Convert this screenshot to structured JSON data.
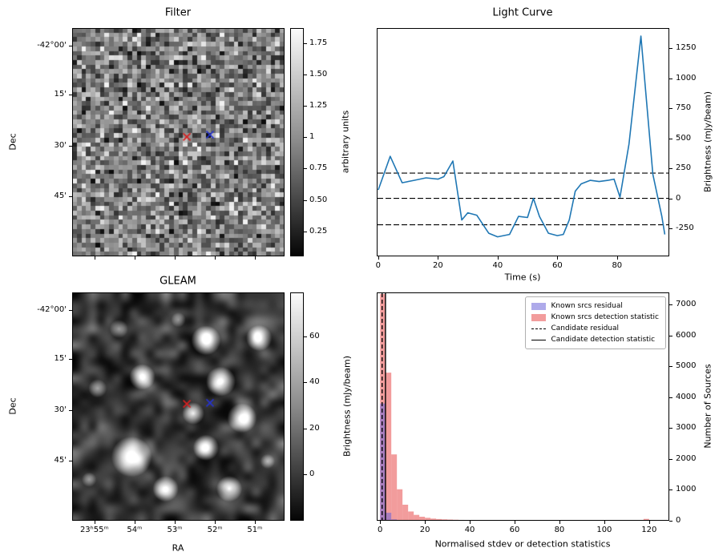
{
  "chart_data": [
    {
      "id": "filter",
      "type": "heatmap",
      "style": "pixel-noise",
      "title": "Filter",
      "xlabel": "",
      "ylabel": "Dec",
      "ytick_labels": [
        "-42°00'",
        "15'",
        "30'",
        "45'"
      ],
      "xtick_labels": [],
      "colorbar": {
        "label": "arbitrary units",
        "ticks": [
          1.75,
          1.5,
          1.25,
          1.0,
          0.75,
          0.5,
          0.25
        ],
        "vmin": 0.05,
        "vmax": 1.87
      },
      "markers": [
        {
          "shape": "x",
          "name": "candidate-marker",
          "color": "#d62020",
          "fx": 0.54,
          "fy": 0.477
        },
        {
          "shape": "x",
          "name": "reference-marker",
          "color": "#2633cc",
          "fx": 0.649,
          "fy": 0.467
        }
      ]
    },
    {
      "id": "light-curve",
      "type": "line",
      "title": "Light Curve",
      "xlabel": "Time (s)",
      "ylabel": "Brightness (mJy/beam)",
      "line_color": "#1f77b4",
      "x": [
        0,
        4,
        8,
        12,
        16,
        20,
        22,
        25,
        28,
        30,
        33,
        37,
        40,
        44,
        47,
        50,
        52,
        54,
        57,
        60,
        62,
        64,
        66,
        68,
        71,
        74,
        77,
        79,
        81,
        84,
        88,
        92,
        95,
        96
      ],
      "y": [
        70,
        350,
        130,
        150,
        170,
        160,
        180,
        310,
        -180,
        -120,
        -140,
        -290,
        -320,
        -300,
        -150,
        -160,
        0,
        -150,
        -290,
        -310,
        -300,
        -180,
        60,
        120,
        150,
        140,
        150,
        160,
        10,
        450,
        1350,
        200,
        -150,
        -300
      ],
      "dashed_hlines": [
        210,
        0,
        -220
      ],
      "xticks": [
        0,
        20,
        40,
        60,
        80
      ],
      "yticks": [
        -250,
        0,
        250,
        500,
        750,
        1000,
        1250
      ],
      "xlim": [
        -0.5,
        97.5
      ],
      "ylim": [
        -483,
        1417
      ]
    },
    {
      "id": "gleam",
      "type": "heatmap",
      "style": "smooth-blobs",
      "title": "GLEAM",
      "xlabel": "RA",
      "ylabel": "Dec",
      "ytick_labels": [
        "-42°00'",
        "15'",
        "30'",
        "45'"
      ],
      "xtick_labels": [
        "23ʰ55ᵐ",
        "54ᵐ",
        "53ᵐ",
        "52ᵐ",
        "51ᵐ"
      ],
      "colorbar": {
        "label": "Brightness (mJy/beam)",
        "ticks": [
          60,
          40,
          20,
          0
        ],
        "vmin": -20,
        "vmax": 79
      },
      "sources": [
        {
          "fx": 0.28,
          "fy": 0.72,
          "r": 11,
          "b": 1.0
        },
        {
          "fx": 0.63,
          "fy": 0.21,
          "r": 8,
          "b": 1.0
        },
        {
          "fx": 0.7,
          "fy": 0.39,
          "r": 8,
          "b": 1.0
        },
        {
          "fx": 0.33,
          "fy": 0.37,
          "r": 7,
          "b": 0.9
        },
        {
          "fx": 0.88,
          "fy": 0.2,
          "r": 7,
          "b": 0.9
        },
        {
          "fx": 0.57,
          "fy": 0.53,
          "r": 6,
          "b": 0.8
        },
        {
          "fx": 0.8,
          "fy": 0.55,
          "r": 8,
          "b": 0.95
        },
        {
          "fx": 0.63,
          "fy": 0.68,
          "r": 7,
          "b": 0.9
        },
        {
          "fx": 0.44,
          "fy": 0.86,
          "r": 7,
          "b": 0.9
        },
        {
          "fx": 0.74,
          "fy": 0.86,
          "r": 7,
          "b": 0.9
        },
        {
          "fx": 0.12,
          "fy": 0.42,
          "r": 5,
          "b": 0.5
        },
        {
          "fx": 0.22,
          "fy": 0.16,
          "r": 5,
          "b": 0.45
        },
        {
          "fx": 0.5,
          "fy": 0.12,
          "r": 4,
          "b": 0.4
        },
        {
          "fx": 0.08,
          "fy": 0.82,
          "r": 4,
          "b": 0.4
        },
        {
          "fx": 0.92,
          "fy": 0.74,
          "r": 4,
          "b": 0.4
        }
      ],
      "markers": [
        {
          "shape": "x",
          "name": "candidate-marker",
          "color": "#d62020",
          "fx": 0.54,
          "fy": 0.488
        },
        {
          "shape": "x",
          "name": "reference-marker",
          "color": "#2633cc",
          "fx": 0.649,
          "fy": 0.484
        }
      ]
    },
    {
      "id": "histogram",
      "type": "bar",
      "title": "",
      "xlabel": "Normalised stdev or detection statistics",
      "ylabel": "Number of Sources",
      "bin_width": 2.5,
      "bin_start": 0,
      "series": [
        {
          "name": "Known srcs residual",
          "color": "#6b64d8",
          "values": [
            3800,
            260,
            45,
            12,
            5,
            3,
            2,
            1,
            1,
            0,
            0,
            0,
            0,
            0,
            0,
            0,
            0,
            0,
            0,
            0,
            0,
            0,
            0,
            0,
            0,
            0,
            0,
            0,
            0,
            0,
            0,
            0,
            0,
            0,
            0,
            0,
            0,
            0,
            0,
            0,
            0,
            0,
            0,
            0,
            0,
            0,
            0,
            0,
            0,
            0,
            0,
            0
          ]
        },
        {
          "name": "Known srcs detection statistic",
          "color": "#e84a4a",
          "values": [
            7350,
            4800,
            2150,
            1020,
            520,
            300,
            190,
            130,
            95,
            70,
            55,
            45,
            38,
            32,
            27,
            23,
            20,
            17,
            15,
            13,
            12,
            11,
            10,
            9,
            8,
            8,
            7,
            7,
            6,
            6,
            5,
            5,
            5,
            4,
            4,
            4,
            3,
            3,
            3,
            3,
            3,
            2,
            2,
            2,
            2,
            2,
            2,
            60,
            2,
            1,
            1,
            1
          ]
        }
      ],
      "vlines": [
        {
          "name": "Candidate residual",
          "x": 0.9,
          "style": "dashed"
        },
        {
          "name": "Candidate detection statistic",
          "x": 2.4,
          "style": "solid"
        }
      ],
      "legend": [
        "Known srcs residual",
        "Known srcs detection statistic",
        "Candidate residual",
        "Candidate detection statistic"
      ],
      "xticks": [
        0,
        20,
        40,
        60,
        80,
        100,
        120
      ],
      "yticks": [
        0,
        1000,
        2000,
        3000,
        4000,
        5000,
        6000,
        7000
      ],
      "xlim": [
        -1.5,
        129
      ],
      "ylim": [
        0,
        7400
      ]
    }
  ]
}
